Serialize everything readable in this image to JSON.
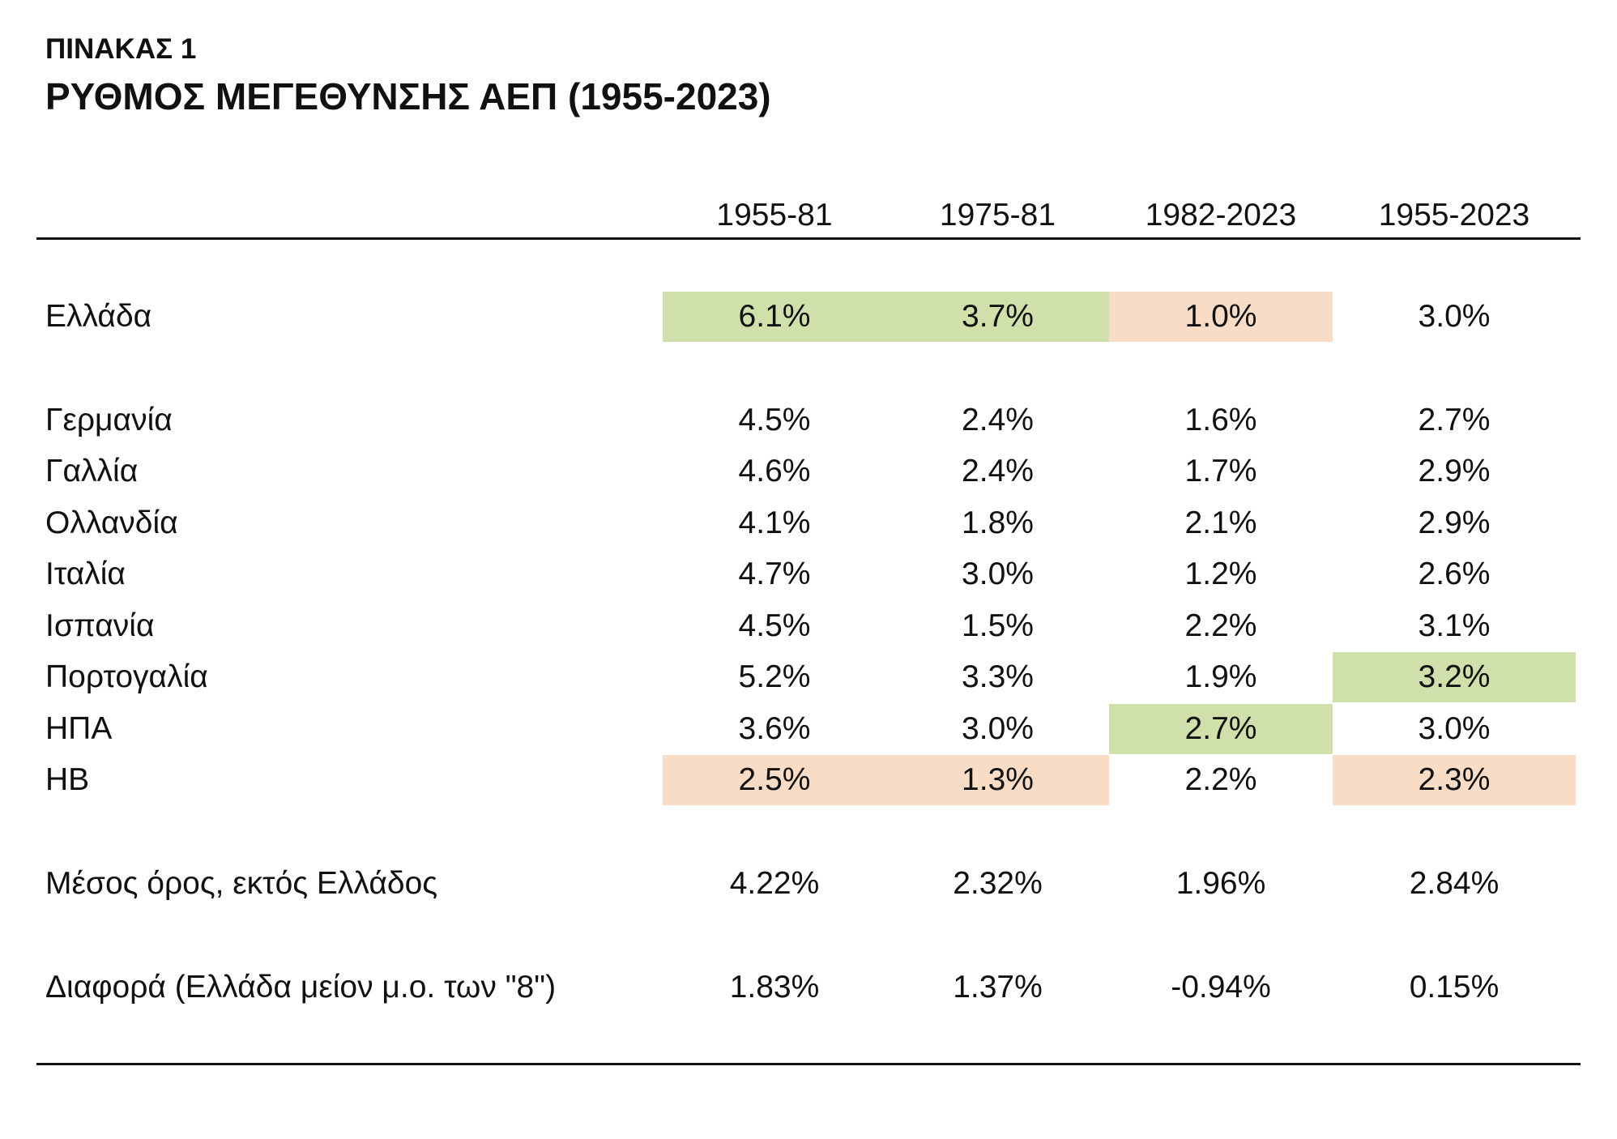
{
  "table_label": "ΠΙΝΑΚΑΣ 1",
  "table_title": "ΡΥΘΜΟΣ ΜΕΓΕΘΥΝΣΗΣ ΑΕΠ (1955-2023)",
  "columns": [
    "1955-81",
    "1975-81",
    "1982-2023",
    "1955-2023"
  ],
  "colors": {
    "green_highlight": "#cfe0aa",
    "peach_highlight": "#f9dcc6"
  },
  "rows": [
    {
      "label": "Ελλάδα",
      "values": [
        "6.1%",
        "3.7%",
        "1.0%",
        "3.0%"
      ],
      "highlights": [
        "green",
        "green",
        "peach",
        ""
      ]
    },
    {
      "label": "Γερμανία",
      "values": [
        "4.5%",
        "2.4%",
        "1.6%",
        "2.7%"
      ],
      "highlights": [
        "",
        "",
        "",
        ""
      ]
    },
    {
      "label": "Γαλλία",
      "values": [
        "4.6%",
        "2.4%",
        "1.7%",
        "2.9%"
      ],
      "highlights": [
        "",
        "",
        "",
        ""
      ]
    },
    {
      "label": "Ολλανδία",
      "values": [
        "4.1%",
        "1.8%",
        "2.1%",
        "2.9%"
      ],
      "highlights": [
        "",
        "",
        "",
        ""
      ]
    },
    {
      "label": "Ιταλία",
      "values": [
        "4.7%",
        "3.0%",
        "1.2%",
        "2.6%"
      ],
      "highlights": [
        "",
        "",
        "",
        ""
      ]
    },
    {
      "label": "Ισπανία",
      "values": [
        "4.5%",
        "1.5%",
        "2.2%",
        "3.1%"
      ],
      "highlights": [
        "",
        "",
        "",
        ""
      ]
    },
    {
      "label": "Πορτογαλία",
      "values": [
        "5.2%",
        "3.3%",
        "1.9%",
        "3.2%"
      ],
      "highlights": [
        "",
        "",
        "",
        "green"
      ]
    },
    {
      "label": "ΗΠΑ",
      "values": [
        "3.6%",
        "3.0%",
        "2.7%",
        "3.0%"
      ],
      "highlights": [
        "",
        "",
        "green",
        ""
      ]
    },
    {
      "label": "ΗΒ",
      "values": [
        "2.5%",
        "1.3%",
        "2.2%",
        "2.3%"
      ],
      "highlights": [
        "peach",
        "peach",
        "",
        "peach"
      ]
    },
    {
      "label": "Μέσος όρος, εκτός Ελλάδος",
      "values": [
        "4.22%",
        "2.32%",
        "1.96%",
        "2.84%"
      ],
      "highlights": [
        "",
        "",
        "",
        ""
      ]
    },
    {
      "label": "Διαφορά (Ελλάδα μείον μ.ο. των \"8\")",
      "values": [
        "1.83%",
        "1.37%",
        "-0.94%",
        "0.15%"
      ],
      "highlights": [
        "",
        "",
        "",
        ""
      ]
    }
  ]
}
